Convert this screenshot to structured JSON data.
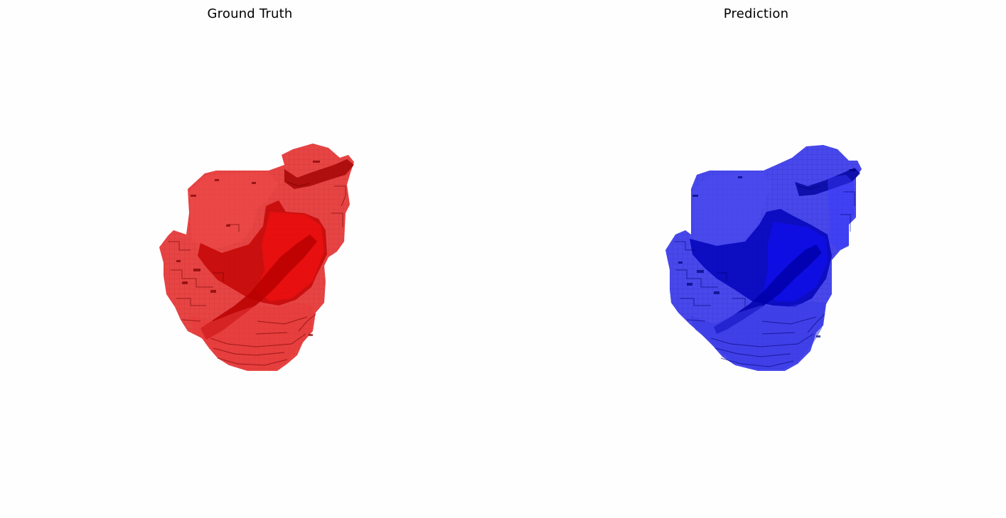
{
  "panels": [
    {
      "title": "Ground Truth",
      "color": "#ff0000",
      "shadow_color": "#a00000",
      "edge_color": "#6e0000"
    },
    {
      "title": "Prediction",
      "color": "#0000ff",
      "shadow_color": "#0000a8",
      "edge_color": "#00006e"
    }
  ],
  "background": "#fefefe"
}
